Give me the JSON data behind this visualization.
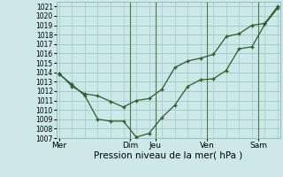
{
  "xlabel": "Pression niveau de la mer( hPa )",
  "background_color": "#cde8e8",
  "grid_color": "#a8c8c8",
  "line_color": "#2d5a2d",
  "vline_color": "#4a7a4a",
  "ylim": [
    1007,
    1021.5
  ],
  "yticks": [
    1007,
    1008,
    1009,
    1010,
    1011,
    1012,
    1013,
    1014,
    1015,
    1016,
    1017,
    1018,
    1019,
    1020,
    1021
  ],
  "day_labels": [
    "Mer",
    "Dim",
    "Jeu",
    "Ven",
    "Sam"
  ],
  "day_x": [
    0.0,
    5.5,
    7.5,
    11.5,
    15.5
  ],
  "vline_x": [
    5.5,
    7.5,
    11.5,
    15.5
  ],
  "xlim": [
    -0.2,
    17.2
  ],
  "line1_x": [
    0,
    1,
    2,
    3,
    4,
    5,
    6,
    7,
    8,
    9,
    10,
    11,
    12,
    13,
    14,
    15,
    16,
    17
  ],
  "line1_y": [
    1013.8,
    1012.7,
    1011.5,
    1009.0,
    1008.8,
    1008.8,
    1007.1,
    1007.5,
    1009.2,
    1010.5,
    1012.5,
    1013.2,
    1013.3,
    1014.2,
    1016.5,
    1016.7,
    1019.1,
    1020.8
  ],
  "line2_x": [
    0,
    1,
    2,
    3,
    4,
    5,
    6,
    7,
    8,
    9,
    10,
    11,
    12,
    13,
    14,
    15,
    16,
    17
  ],
  "line2_y": [
    1013.9,
    1012.5,
    1011.7,
    1011.5,
    1010.9,
    1010.3,
    1011.0,
    1011.2,
    1012.2,
    1014.5,
    1015.2,
    1015.5,
    1015.9,
    1017.8,
    1018.1,
    1019.0,
    1019.2,
    1021.0
  ],
  "xlabel_fontsize": 7.5,
  "ytick_fontsize": 5.5,
  "xtick_fontsize": 6.5
}
